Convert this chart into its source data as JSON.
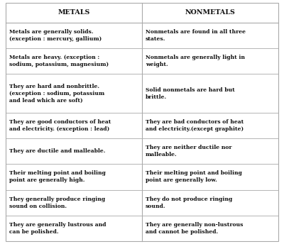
{
  "col1_header": "METALS",
  "col2_header": "NONMETALS",
  "rows": [
    {
      "metals": "Metals are generally solids.\n(exception : mercury, gallium)",
      "nonmetals": "Nonmetals are found in all three\nstates."
    },
    {
      "metals": "Metals are heavy. (exception :\nsodium, potassium, magnesium)",
      "nonmetals": "Nonmetals are generally light in\nweight."
    },
    {
      "metals": "They are hard and nonbrittle.\n(exception : sodium, potassium\nand lead which are soft)",
      "nonmetals": "Solid nonmetals are hard but\nbrittle."
    },
    {
      "metals": "They are good conductors of heat\nand electricity. (exception : lead)",
      "nonmetals": "They are bad conductors of heat\nand electricity.(except graphite)"
    },
    {
      "metals": "They are ductile and malleable.",
      "nonmetals": "They are neither ductile nor\nmalleable."
    },
    {
      "metals": "Their melting point and boiling\npoint are generally high.",
      "nonmetals": "Their melting point and boiling\npoint are generally low."
    },
    {
      "metals": "They generally produce ringing\nsound on collision.",
      "nonmetals": "They do not produce ringing\nsound."
    },
    {
      "metals": "They are generally lustrous and\ncan be polished.",
      "nonmetals": "They are generally non-lustrous\nand cannot be polished."
    }
  ],
  "bg_color": "#ffffff",
  "header_bg": "#ffffff",
  "line_color": "#aaaaaa",
  "text_color": "#111111",
  "font_size": 5.5,
  "header_font_size": 6.8,
  "row_lines": [
    2,
    2,
    3,
    2,
    2,
    2,
    2,
    2
  ]
}
